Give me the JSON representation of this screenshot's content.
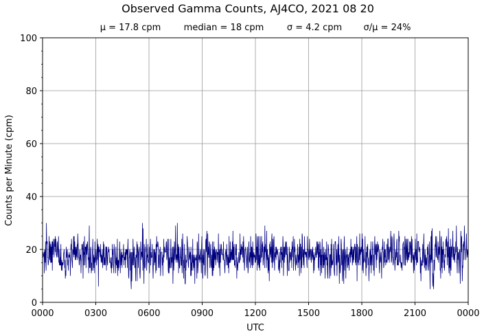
{
  "chart_data": {
    "type": "line",
    "title": "Observed Gamma Counts, AJ4CO, 2021 08 20",
    "stats": [
      "μ = 17.8 cpm",
      "median = 18 cpm",
      "σ = 4.2 cpm",
      "σ/μ = 24%"
    ],
    "xlabel": "UTC",
    "ylabel": "Counts per Minute (cpm)",
    "x_unit": "minutes since 0000 UTC",
    "xlim": [
      0,
      1440
    ],
    "ylim": [
      0,
      100
    ],
    "x_ticks": [
      0,
      180,
      360,
      540,
      720,
      900,
      1080,
      1260,
      1440
    ],
    "x_tick_labels": [
      "0000",
      "0300",
      "0600",
      "0900",
      "1200",
      "1500",
      "1800",
      "2100",
      "0000"
    ],
    "y_ticks": [
      0,
      20,
      40,
      60,
      80,
      100
    ],
    "y_tick_labels": [
      "0",
      "20",
      "40",
      "60",
      "80",
      "100"
    ],
    "grid": true,
    "line_color": "#00007f",
    "grid_color": "#999999",
    "series": [
      {
        "values_summary": "1-minute gamma counts, ~1440 samples, mean 17.8 cpm, sd 4.2 cpm, range approx 5–32 cpm",
        "mean": 17.8,
        "median": 18,
        "std": 4.2,
        "n_points": 1440,
        "min": 5,
        "max": 32
      }
    ]
  }
}
